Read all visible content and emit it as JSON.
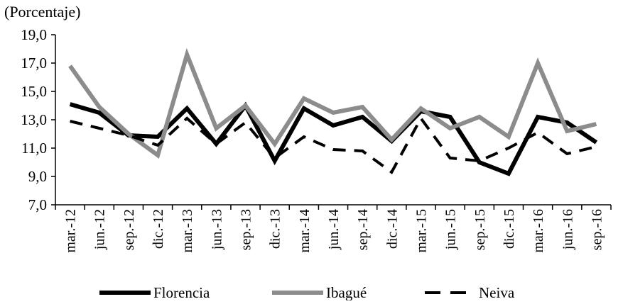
{
  "chart_data": {
    "type": "line",
    "ylabel": "(Porcentaje)",
    "categories": [
      "mar.-12",
      "jun.-12",
      "sep.-12",
      "dic.-12",
      "mar.-13",
      "jun.-13",
      "sep.-13",
      "dic.-13",
      "mar.-14",
      "jun.-14",
      "sep.-14",
      "dic.-14",
      "mar.-15",
      "jun.-15",
      "sep.-15",
      "dic.-15",
      "mar.-16",
      "jun.-16",
      "sep.-16"
    ],
    "yticks": [
      "7,0",
      "9,0",
      "11,0",
      "13,0",
      "15,0",
      "17,0",
      "19,0"
    ],
    "ylim": [
      7,
      19
    ],
    "grid": false,
    "legend_position": "bottom",
    "series": [
      {
        "name": "Florencia",
        "color": "#000000",
        "style": "solid",
        "values": [
          14.1,
          13.5,
          11.9,
          11.8,
          13.8,
          11.3,
          14.0,
          10.1,
          13.8,
          12.6,
          13.2,
          11.5,
          13.6,
          13.2,
          10.0,
          9.2,
          13.2,
          12.8,
          11.4
        ]
      },
      {
        "name": "Ibagué",
        "color": "#8c8c8c",
        "style": "solid",
        "values": [
          16.8,
          13.9,
          12.0,
          10.5,
          17.6,
          12.4,
          14.0,
          11.3,
          14.5,
          13.5,
          13.9,
          11.6,
          13.8,
          12.4,
          13.2,
          11.8,
          17.0,
          12.2,
          12.7
        ]
      },
      {
        "name": "Neiva",
        "color": "#000000",
        "style": "dashed",
        "values": [
          12.9,
          12.4,
          11.9,
          11.2,
          13.1,
          11.3,
          12.8,
          10.3,
          11.8,
          10.9,
          10.8,
          9.3,
          13.1,
          10.3,
          10.1,
          11.0,
          12.1,
          10.6,
          11.1
        ]
      }
    ]
  }
}
